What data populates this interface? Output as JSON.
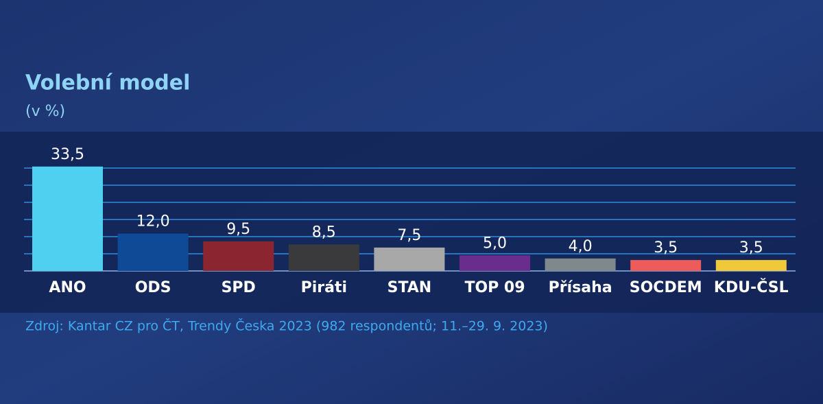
{
  "chart_data": {
    "type": "bar",
    "title": "Volební model",
    "subtitle": "(v %)",
    "categories": [
      "ANO",
      "ODS",
      "SPD",
      "Piráti",
      "STAN",
      "TOP 09",
      "Přísaha",
      "SOCDEM",
      "KDU-ČSL"
    ],
    "values": [
      33.5,
      12.0,
      9.5,
      8.5,
      7.5,
      5.0,
      4.0,
      3.5,
      3.5
    ],
    "value_labels": [
      "33,5",
      "12,0",
      "9,5",
      "8,5",
      "7,5",
      "5,0",
      "4,0",
      "3,5",
      "3,5"
    ],
    "colors": [
      "#4fd0f0",
      "#0f4a97",
      "#8b2630",
      "#3a3a3c",
      "#a8a8a8",
      "#6a2d8e",
      "#7f898c",
      "#ee5b5b",
      "#f0c93b"
    ],
    "ylim": [
      0,
      35
    ],
    "source": "Zdroj: Kantar CZ pro ČT, Trendy Česka 2023 (982 respondentů; 11.–29. 9. 2023)"
  }
}
